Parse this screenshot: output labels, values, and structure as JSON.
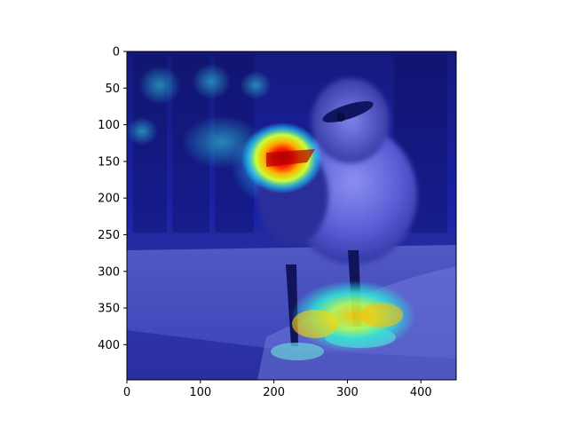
{
  "figure": {
    "image": {
      "subject": "duckling",
      "overlay": "heatmap",
      "colormap": "jet",
      "hotspots": [
        "beak",
        "feet"
      ]
    },
    "x_axis": {
      "range": [
        0,
        448
      ],
      "ticks": [
        {
          "value": 0,
          "label": "0"
        },
        {
          "value": 100,
          "label": "100"
        },
        {
          "value": 200,
          "label": "200"
        },
        {
          "value": 300,
          "label": "300"
        },
        {
          "value": 400,
          "label": "400"
        }
      ]
    },
    "y_axis": {
      "range": [
        0,
        448
      ],
      "inverted": true,
      "ticks": [
        {
          "value": 0,
          "label": "0"
        },
        {
          "value": 50,
          "label": "50"
        },
        {
          "value": 100,
          "label": "100"
        },
        {
          "value": 150,
          "label": "150"
        },
        {
          "value": 200,
          "label": "200"
        },
        {
          "value": 250,
          "label": "250"
        },
        {
          "value": 300,
          "label": "300"
        },
        {
          "value": 350,
          "label": "350"
        },
        {
          "value": 400,
          "label": "400"
        }
      ]
    }
  }
}
